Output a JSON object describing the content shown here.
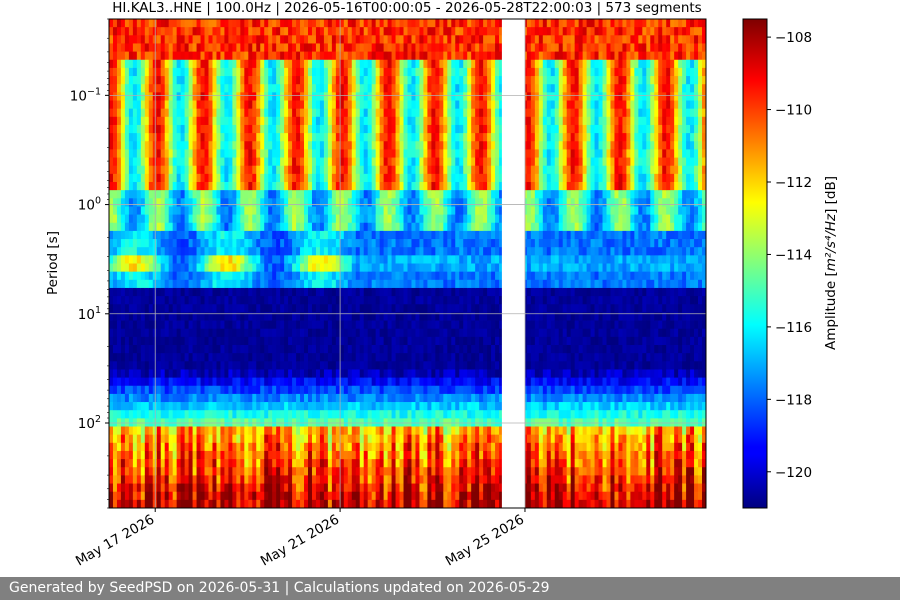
{
  "footer": {
    "text": "Generated by SeedPSD on 2026-05-31 | Calculations updated on 2026-05-29"
  },
  "chart_data": {
    "type": "heatmap",
    "title": "HI.KAL3..HNE | 100.0Hz | 2026-05-16T00:00:05 - 2026-05-28T22:00:03 | 573 segments",
    "ylabel": "Period [s]",
    "y_scale": "log",
    "y_inverted": true,
    "ylim": [
      0.02,
      600
    ],
    "y_ticks": [
      {
        "value": 0.1,
        "base": "10",
        "exp": "−1"
      },
      {
        "value": 1,
        "base": "10",
        "exp": "0"
      },
      {
        "value": 10,
        "base": "10",
        "exp": "1"
      },
      {
        "value": 100,
        "base": "10",
        "exp": "2"
      }
    ],
    "x_start": "2026-05-16T00:00:05",
    "x_end": "2026-05-28T22:00:03",
    "x_ticks": [
      {
        "date": "2026-05-17",
        "label": "May 17 2026"
      },
      {
        "date": "2026-05-21",
        "label": "May 21 2026"
      },
      {
        "date": "2026-05-25",
        "label": "May 25 2026"
      }
    ],
    "segments": 573,
    "data_gap": [
      "2026-05-24T12:00:00",
      "2026-05-25T00:00:00"
    ],
    "grid": true,
    "colorbar": {
      "label_prefix": "Amplitude [",
      "label_math": "m²/s⁴/Hz",
      "label_suffix": "] [dB]",
      "min": -121,
      "max": -107.5,
      "colormap": "jet",
      "ticks": [
        -108,
        -110,
        -112,
        -114,
        -116,
        -118,
        -120
      ],
      "tick_labels": [
        "−108",
        "−110",
        "−112",
        "−114",
        "−116",
        "−118",
        "−120"
      ]
    }
  }
}
